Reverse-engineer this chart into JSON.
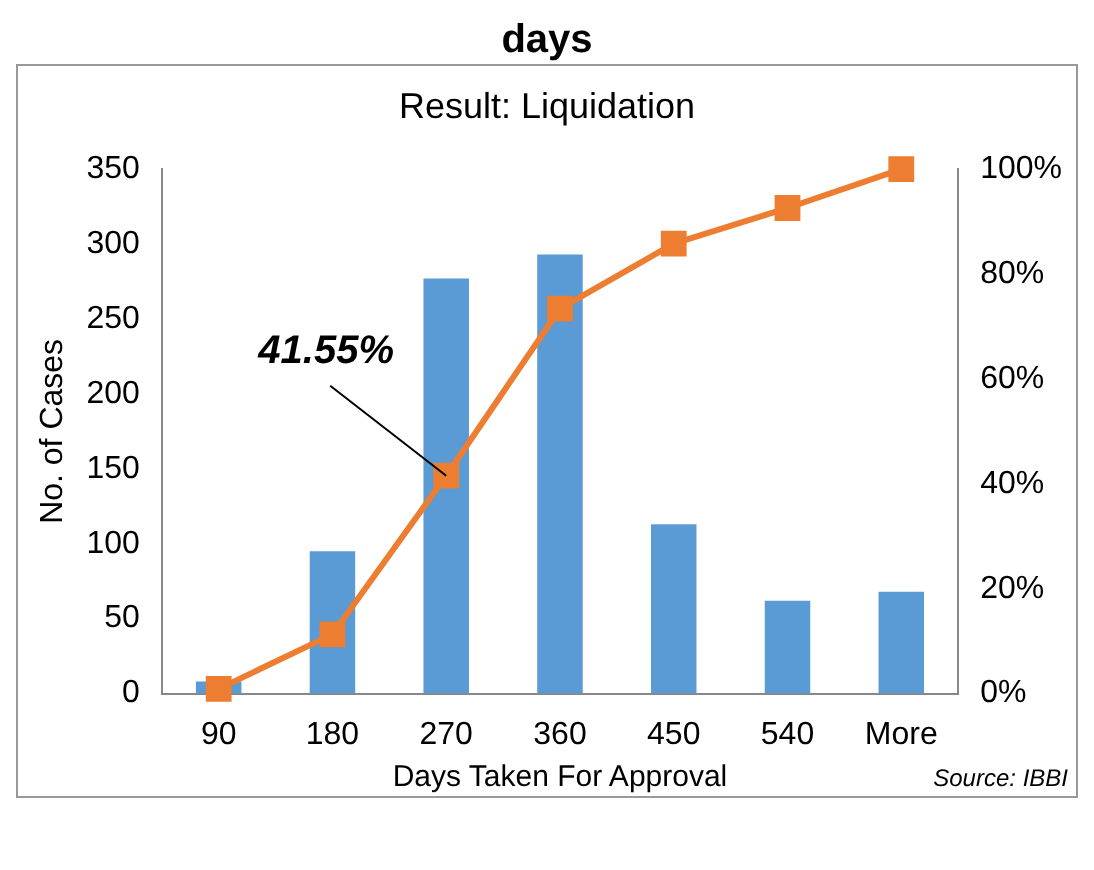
{
  "chart_data": {
    "type": "bar",
    "title": "days",
    "subtitle": "Result: Liquidation",
    "xlabel": "Days Taken For Approval",
    "ylabel": "No. of Cases",
    "categories": [
      "90",
      "180",
      "270",
      "360",
      "450",
      "540",
      "More"
    ],
    "series": [
      {
        "color": "#5b9bd5",
        "values": [
          8,
          95,
          277,
          293,
          113,
          62,
          68
        ]
      },
      {
        "type": "line",
        "axis": "y2",
        "color": "#ed7d31",
        "values": [
          0.9,
          11.3,
          41.55,
          73.4,
          85.8,
          92.6,
          100
        ],
        "value_labels": [
          null,
          null,
          "41.55%",
          null,
          null,
          null,
          null
        ]
      }
    ],
    "ylim": [
      0,
      350
    ],
    "yticks": [
      0,
      50,
      100,
      150,
      200,
      250,
      300,
      350
    ],
    "y2lim": [
      0,
      100
    ],
    "y2ticks": [
      {
        "value": 0,
        "label": "0%"
      },
      {
        "value": 20,
        "label": "20%"
      },
      {
        "value": 40,
        "label": "40%"
      },
      {
        "value": 60,
        "label": "60%"
      },
      {
        "value": 80,
        "label": "80%"
      },
      {
        "value": 100,
        "label": "100%"
      }
    ],
    "marker": "square",
    "grid": false,
    "legend": false,
    "annotations": [
      "Source: IBBI"
    ]
  }
}
